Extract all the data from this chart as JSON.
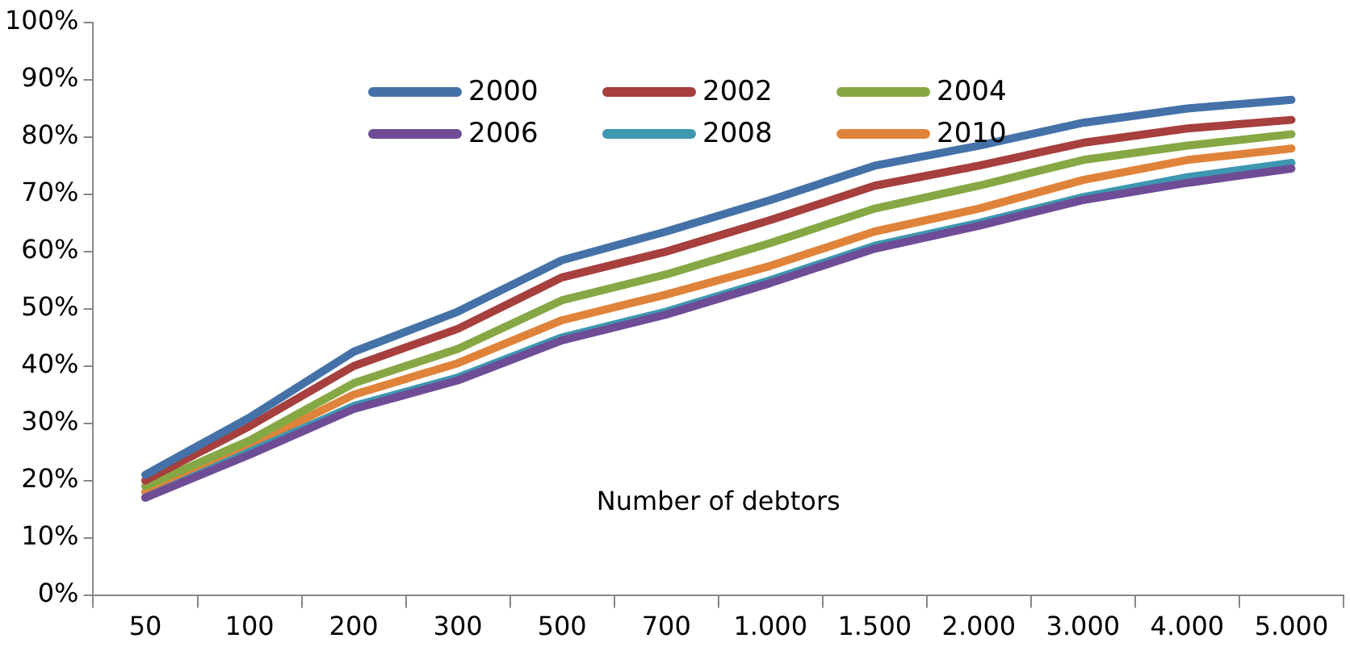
{
  "chart_data": {
    "type": "line",
    "xlabel": "Number of debtors",
    "categories": [
      "50",
      "100",
      "200",
      "300",
      "500",
      "700",
      "1.000",
      "1.500",
      "2.000",
      "3.000",
      "4.000",
      "5.000"
    ],
    "series": [
      {
        "name": "2000",
        "color": "#4472a8",
        "values": [
          21,
          31,
          42.5,
          49.5,
          58.5,
          63.5,
          69,
          75,
          78.5,
          82.5,
          85,
          86.5
        ]
      },
      {
        "name": "2002",
        "color": "#a63f3d",
        "values": [
          20,
          29.5,
          40,
          46.5,
          55.5,
          60,
          65.5,
          71.5,
          75,
          79,
          81.5,
          83
        ]
      },
      {
        "name": "2004",
        "color": "#86a844",
        "values": [
          19,
          27,
          37,
          43,
          51.5,
          56,
          61.5,
          67.5,
          71.5,
          76,
          78.5,
          80.5
        ]
      },
      {
        "name": "2006",
        "color": "#6e4d96",
        "values": [
          17,
          24.5,
          32.5,
          37.5,
          44.5,
          49,
          54.5,
          60.5,
          64.5,
          69,
          72,
          74.5
        ]
      },
      {
        "name": "2008",
        "color": "#3d97b0",
        "values": [
          17,
          25,
          33,
          38,
          45,
          49.5,
          55,
          61,
          65,
          69.5,
          73,
          75.5
        ]
      },
      {
        "name": "2010",
        "color": "#e0833a",
        "values": [
          18,
          26,
          35,
          40.5,
          48,
          52.5,
          57.5,
          63.5,
          67.5,
          72.5,
          76,
          78
        ]
      }
    ],
    "ylim": [
      0,
      100
    ],
    "yticks": [
      {
        "value": 0,
        "label": "0%"
      },
      {
        "value": 10,
        "label": "10%"
      },
      {
        "value": 20,
        "label": "20%"
      },
      {
        "value": 30,
        "label": "30%"
      },
      {
        "value": 40,
        "label": "40%"
      },
      {
        "value": 50,
        "label": "50%"
      },
      {
        "value": 60,
        "label": "60%"
      },
      {
        "value": 70,
        "label": "70%"
      },
      {
        "value": 80,
        "label": "80%"
      },
      {
        "value": 90,
        "label": "90%"
      },
      {
        "value": 100,
        "label": "100%"
      }
    ],
    "grid": false,
    "legend": "top",
    "marker": "none",
    "line_style": "solid"
  }
}
